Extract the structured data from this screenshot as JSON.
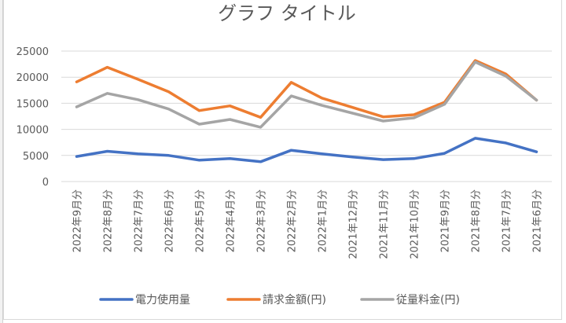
{
  "chart_data": {
    "type": "line",
    "title": "グラフ タイトル",
    "categories": [
      "2022年9月分",
      "2022年8月分",
      "2022年7月分",
      "2022年6月分",
      "2022年5月分",
      "2022年4月分",
      "2022年3月分",
      "2022年2月分",
      "2022年1月分",
      "2021年12月分",
      "2021年11月分",
      "2021年10月分",
      "2021年9月分",
      "2021年8月分",
      "2021年7月分",
      "2021年6月分"
    ],
    "ylim": [
      0,
      25000
    ],
    "yticks": [
      0,
      5000,
      10000,
      15000,
      20000,
      25000
    ],
    "grid": true,
    "legend_position": "bottom",
    "series": [
      {
        "name": "電力使用量",
        "color": "#4472c4",
        "values": [
          4800,
          5800,
          5300,
          5000,
          4100,
          4400,
          3800,
          6000,
          5300,
          4700,
          4200,
          4400,
          5400,
          8300,
          7400,
          5700
        ]
      },
      {
        "name": "請求金額(円)",
        "color": "#ed7d31",
        "values": [
          19100,
          21900,
          19600,
          17200,
          13600,
          14500,
          12300,
          19000,
          16000,
          14200,
          12400,
          12800,
          15200,
          23200,
          20600,
          15600
        ]
      },
      {
        "name": "従量料金(円)",
        "color": "#a5a5a5",
        "values": [
          14300,
          16900,
          15700,
          13900,
          11000,
          11900,
          10400,
          16400,
          14600,
          13100,
          11600,
          12200,
          14800,
          22900,
          20200,
          15600
        ]
      }
    ]
  }
}
